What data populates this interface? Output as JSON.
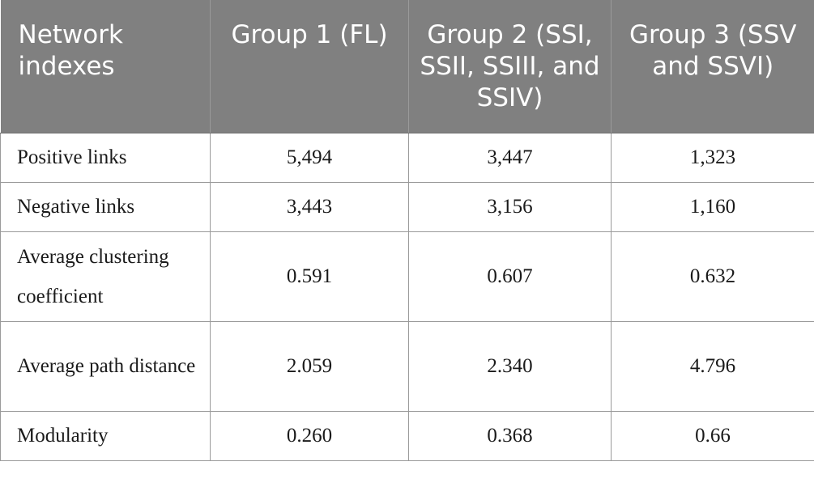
{
  "table": {
    "headers": [
      "Network indexes",
      "Group 1 (FL)",
      "Group 2 (SSI, SSII, SSIII, and SSIV)",
      "Group 3 (SSV and SSVI)"
    ],
    "rows": [
      {
        "label": "Positive links",
        "values": [
          "5,494",
          "3,447",
          "1,323"
        ]
      },
      {
        "label": "Negative links",
        "values": [
          "3,443",
          "3,156",
          "1,160"
        ]
      },
      {
        "label": "Average clustering coefficient",
        "values": [
          "0.591",
          "0.607",
          "0.632"
        ]
      },
      {
        "label": "Average path distance",
        "values": [
          "2.059",
          "2.340",
          "4.796"
        ]
      },
      {
        "label": "Modularity",
        "values": [
          "0.260",
          "0.368",
          "0.66"
        ]
      }
    ]
  },
  "colors": {
    "header_background": "#808080",
    "header_text": "#ffffff",
    "border": "#9a9a9a"
  }
}
